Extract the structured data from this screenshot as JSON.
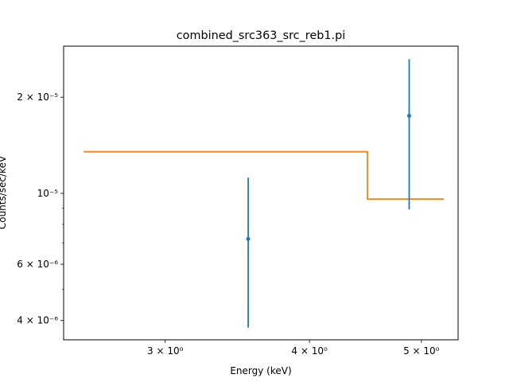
{
  "chart_data": {
    "type": "scatter",
    "title": "combined_src363_src_reb1.pi",
    "xlabel": "Energy (keV)",
    "ylabel": "Counts/sec/keV",
    "xscale": "log",
    "yscale": "log",
    "xlim": [
      2.45,
      5.38
    ],
    "ylim": [
      3.48e-06,
      2.89e-05
    ],
    "grid": false,
    "x_ticks": [
      {
        "value": 3,
        "label": "3 × 10⁰"
      },
      {
        "value": 4,
        "label": "4 × 10⁰"
      },
      {
        "value": 5,
        "label": "5 × 10⁰"
      }
    ],
    "y_ticks": [
      {
        "value": 4e-06,
        "label": "4 × 10⁻⁶"
      },
      {
        "value": 6e-06,
        "label": "6 × 10⁻⁶"
      },
      {
        "value": 1e-05,
        "label": "10⁻⁵"
      },
      {
        "value": 2e-05,
        "label": "2 × 10⁻⁵"
      }
    ],
    "series": [
      {
        "kind": "data",
        "color": "#1f77b4",
        "points": [
          {
            "x": 3.54,
            "y": 7.2e-06,
            "ylow": 3.8e-06,
            "yhigh": 1.12e-05
          },
          {
            "x": 4.88,
            "y": 1.75e-05,
            "ylow": 8.9e-06,
            "yhigh": 2.63e-05
          }
        ]
      },
      {
        "kind": "model",
        "color": "#ff7f0e",
        "steps": [
          {
            "x0": 2.55,
            "x1": 4.49,
            "y": 1.35e-05
          },
          {
            "x0": 4.49,
            "x1": 5.23,
            "y": 9.6e-06
          }
        ]
      }
    ]
  }
}
